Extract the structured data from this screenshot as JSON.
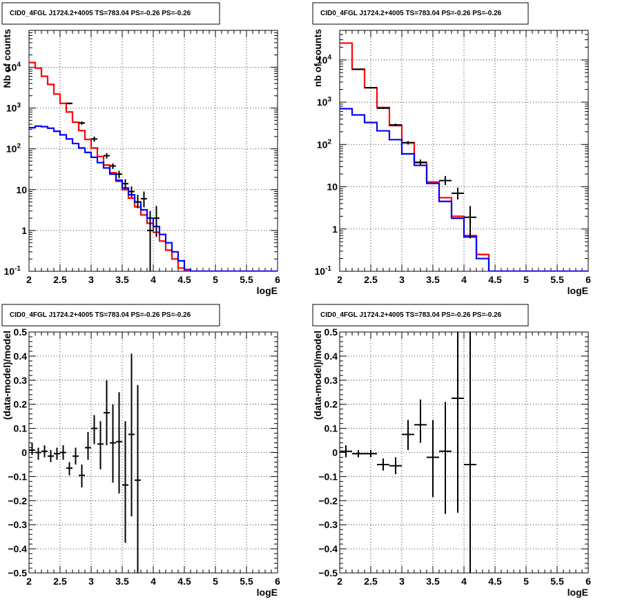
{
  "colors": {
    "data": "#000000",
    "total_model": "#ff0000",
    "background_model": "#0000ff",
    "grid": "#000000"
  },
  "chart_data": [
    {
      "type": "step",
      "title": "CID0_4FGL J1724.2+4005 TS=783.04 PS=-0.26 PS=-0.26",
      "xlabel": "logE",
      "ylabel": "Nb of counts",
      "xlim": [
        2,
        6
      ],
      "ylim": [
        0.1,
        80000
      ],
      "yscale": "log",
      "grid": true,
      "x_ticks": [
        "2",
        "2.5",
        "3",
        "3.5",
        "4",
        "4.5",
        "5",
        "5.5",
        "6"
      ],
      "y_ticks": [
        "10^{-1}",
        "1",
        "10",
        "10^{2}",
        "10^{3}",
        "10^{4}"
      ],
      "bin_edges": [
        2.0,
        2.1,
        2.2,
        2.3,
        2.4,
        2.5,
        2.6,
        2.7,
        2.8,
        2.9,
        3.0,
        3.1,
        3.2,
        3.3,
        3.4,
        3.5,
        3.6,
        3.7,
        3.8,
        3.9,
        4.0,
        4.1,
        4.2,
        4.3,
        4.4,
        4.5,
        4.6,
        4.7,
        4.8,
        4.9,
        5.0,
        5.1,
        5.2,
        5.3,
        5.4,
        5.5,
        5.6,
        5.7,
        5.8,
        5.9,
        6.0
      ],
      "series": [
        {
          "name": "",
          "role": "total_model",
          "values": [
            13000,
            9500,
            6000,
            3800,
            2200,
            1300,
            800,
            450,
            280,
            170,
            105,
            65,
            40,
            26,
            16,
            10,
            6.2,
            3.8,
            2.4,
            1.5,
            0.9,
            0.55,
            0.33,
            0.2,
            0.12,
            0.1,
            0.1,
            0.1,
            0.1,
            0.1,
            0.1,
            0.1,
            0.1,
            0.1,
            0.1,
            0.1,
            0.1,
            0.1,
            0.1,
            0.1
          ]
        },
        {
          "name": "",
          "role": "background_model",
          "values": [
            330,
            360,
            350,
            320,
            270,
            220,
            175,
            135,
            105,
            82,
            62,
            46,
            34,
            24,
            17,
            11,
            7.5,
            5,
            3.2,
            2,
            1.25,
            0.8,
            0.5,
            0.3,
            0.18,
            0.11,
            0.1,
            0.1,
            0.1,
            0.1,
            0.1,
            0.1,
            0.1,
            0.1,
            0.1,
            0.1,
            0.1,
            0.1,
            0.1,
            0.1
          ]
        }
      ],
      "data_points": [
        {
          "x": 2.65,
          "y": 1300,
          "lo": 1230,
          "hi": 1370
        },
        {
          "x": 2.85,
          "y": 430,
          "lo": 390,
          "hi": 470
        },
        {
          "x": 3.05,
          "y": 175,
          "lo": 150,
          "hi": 200
        },
        {
          "x": 3.25,
          "y": 68,
          "lo": 58,
          "hi": 78
        },
        {
          "x": 3.35,
          "y": 38,
          "lo": 32,
          "hi": 44
        },
        {
          "x": 3.45,
          "y": 24,
          "lo": 19,
          "hi": 29
        },
        {
          "x": 3.55,
          "y": 14,
          "lo": 10.5,
          "hi": 18
        },
        {
          "x": 3.65,
          "y": 9,
          "lo": 6.5,
          "hi": 12
        },
        {
          "x": 3.75,
          "y": 5,
          "lo": 3.5,
          "hi": 7.5
        },
        {
          "x": 3.85,
          "y": 6,
          "lo": 3.7,
          "hi": 9
        },
        {
          "x": 3.95,
          "y": 1,
          "lo": 0.1,
          "hi": 3
        },
        {
          "x": 4.05,
          "y": 2,
          "lo": 0.7,
          "hi": 4
        }
      ]
    },
    {
      "type": "step",
      "title": "CID0_4FGL J1724.2+4005 TS=783.04 PS=-0.26 PS=-0.26",
      "xlabel": "logE",
      "ylabel": "nb of counts",
      "xlim": [
        2,
        6
      ],
      "ylim": [
        0.1,
        50000
      ],
      "yscale": "log",
      "grid": true,
      "x_ticks": [
        "2",
        "2.5",
        "3",
        "3.5",
        "4",
        "4.5",
        "5",
        "5.5",
        "6"
      ],
      "y_ticks": [
        "10^{-1}",
        "1",
        "10",
        "10^{2}",
        "10^{3}",
        "10^{4}"
      ],
      "bin_edges": [
        2.0,
        2.2,
        2.4,
        2.6,
        2.8,
        3.0,
        3.2,
        3.4,
        3.6,
        3.8,
        4.0,
        4.2,
        4.4,
        4.6,
        4.8,
        5.0,
        5.2,
        5.4,
        5.6,
        5.8,
        6.0
      ],
      "series": [
        {
          "name": "",
          "role": "total_model",
          "values": [
            25000,
            6000,
            2200,
            750,
            280,
            110,
            37,
            13,
            5.5,
            2,
            0.7,
            0.25,
            0.1,
            0.1,
            0.1,
            0.1,
            0.1,
            0.1,
            0.1,
            0.1
          ]
        },
        {
          "name": "",
          "role": "background_model",
          "values": [
            700,
            500,
            330,
            210,
            130,
            60,
            32,
            12,
            4.5,
            1.8,
            0.65,
            0.2,
            0.1,
            0.1,
            0.1,
            0.1,
            0.1,
            0.1,
            0.1,
            0.1
          ]
        }
      ],
      "data_points": [
        {
          "x": 2.3,
          "y": 6000,
          "lo": 5900,
          "hi": 6100
        },
        {
          "x": 2.5,
          "y": 2200,
          "lo": 2150,
          "hi": 2250
        },
        {
          "x": 2.7,
          "y": 720,
          "lo": 690,
          "hi": 750
        },
        {
          "x": 2.9,
          "y": 290,
          "lo": 270,
          "hi": 310
        },
        {
          "x": 3.1,
          "y": 110,
          "lo": 100,
          "hi": 120
        },
        {
          "x": 3.3,
          "y": 38,
          "lo": 32,
          "hi": 44
        },
        {
          "x": 3.7,
          "y": 14,
          "lo": 11,
          "hi": 18
        },
        {
          "x": 3.9,
          "y": 7,
          "lo": 5,
          "hi": 9.5
        },
        {
          "x": 4.1,
          "y": 1.9,
          "lo": 0.6,
          "hi": 3.5
        }
      ]
    },
    {
      "type": "scatter",
      "title": "CID0_4FGL J1724.2+4005 TS=783.04 PS=-0.26 PS=-0.26",
      "xlabel": "logE",
      "ylabel": "(data-model)/model",
      "xlim": [
        2,
        6
      ],
      "ylim": [
        -0.5,
        0.5
      ],
      "yscale": "linear",
      "grid": true,
      "x_ticks": [
        "2",
        "2.5",
        "3",
        "3.5",
        "4",
        "4.5",
        "5",
        "5.5",
        "6"
      ],
      "y_ticks": [
        "-0.5",
        "-0.4",
        "-0.3",
        "-0.2",
        "-0.1",
        "0",
        "0.1",
        "0.2",
        "0.3",
        "0.4",
        "0.5"
      ],
      "x_half_width": 0.05,
      "data_points": [
        {
          "x": 2.05,
          "y": 0.01,
          "lo": -0.01,
          "hi": 0.04
        },
        {
          "x": 2.15,
          "y": 0.0,
          "lo": -0.03,
          "hi": 0.02
        },
        {
          "x": 2.25,
          "y": 0.005,
          "lo": -0.02,
          "hi": 0.03
        },
        {
          "x": 2.35,
          "y": -0.015,
          "lo": -0.04,
          "hi": 0.01
        },
        {
          "x": 2.45,
          "y": -0.005,
          "lo": -0.03,
          "hi": 0.02
        },
        {
          "x": 2.55,
          "y": 0.0,
          "lo": -0.03,
          "hi": 0.03
        },
        {
          "x": 2.65,
          "y": -0.065,
          "lo": -0.095,
          "hi": -0.04
        },
        {
          "x": 2.75,
          "y": -0.015,
          "lo": -0.05,
          "hi": 0.02
        },
        {
          "x": 2.85,
          "y": -0.095,
          "lo": -0.145,
          "hi": -0.05
        },
        {
          "x": 2.95,
          "y": 0.02,
          "lo": -0.03,
          "hi": 0.085
        },
        {
          "x": 3.05,
          "y": 0.1,
          "lo": 0.035,
          "hi": 0.155
        },
        {
          "x": 3.15,
          "y": 0.035,
          "lo": -0.07,
          "hi": 0.13
        },
        {
          "x": 3.25,
          "y": 0.165,
          "lo": 0.03,
          "hi": 0.3
        },
        {
          "x": 3.35,
          "y": 0.04,
          "lo": -0.125,
          "hi": 0.2
        },
        {
          "x": 3.45,
          "y": 0.045,
          "lo": -0.17,
          "hi": 0.25
        },
        {
          "x": 3.55,
          "y": -0.135,
          "lo": -0.375,
          "hi": 0.13
        },
        {
          "x": 3.65,
          "y": 0.075,
          "lo": -0.265,
          "hi": 0.41
        },
        {
          "x": 3.75,
          "y": -0.115,
          "lo": -0.5,
          "hi": 0.28
        }
      ]
    },
    {
      "type": "scatter",
      "title": "CID0_4FGL J1724.2+4005 TS=783.04 PS=-0.26 PS=-0.26",
      "xlabel": "logE",
      "ylabel": "(data-model)/model",
      "xlim": [
        2,
        6
      ],
      "ylim": [
        -0.5,
        0.5
      ],
      "yscale": "linear",
      "grid": true,
      "x_ticks": [
        "2",
        "2.5",
        "3",
        "3.5",
        "4",
        "4.5",
        "5",
        "5.5",
        "6"
      ],
      "y_ticks": [
        "-0.5",
        "-0.4",
        "-0.3",
        "-0.2",
        "-0.1",
        "0",
        "0.1",
        "0.2",
        "0.3",
        "0.4",
        "0.5"
      ],
      "x_half_width": 0.1,
      "data_points": [
        {
          "x": 2.1,
          "y": 0.005,
          "lo": -0.02,
          "hi": 0.03
        },
        {
          "x": 2.3,
          "y": -0.005,
          "lo": -0.02,
          "hi": 0.01
        },
        {
          "x": 2.5,
          "y": -0.005,
          "lo": -0.02,
          "hi": 0.01
        },
        {
          "x": 2.7,
          "y": -0.05,
          "lo": -0.075,
          "hi": -0.025
        },
        {
          "x": 2.9,
          "y": -0.055,
          "lo": -0.09,
          "hi": -0.02
        },
        {
          "x": 3.1,
          "y": 0.075,
          "lo": 0.01,
          "hi": 0.135
        },
        {
          "x": 3.3,
          "y": 0.115,
          "lo": 0.04,
          "hi": 0.22
        },
        {
          "x": 3.5,
          "y": -0.02,
          "lo": -0.185,
          "hi": 0.135
        },
        {
          "x": 3.7,
          "y": 0.005,
          "lo": -0.255,
          "hi": 0.21
        },
        {
          "x": 3.9,
          "y": 0.225,
          "lo": -0.25,
          "hi": 0.5
        },
        {
          "x": 4.1,
          "y": -0.05,
          "lo": -0.5,
          "hi": 0.5
        }
      ]
    }
  ]
}
